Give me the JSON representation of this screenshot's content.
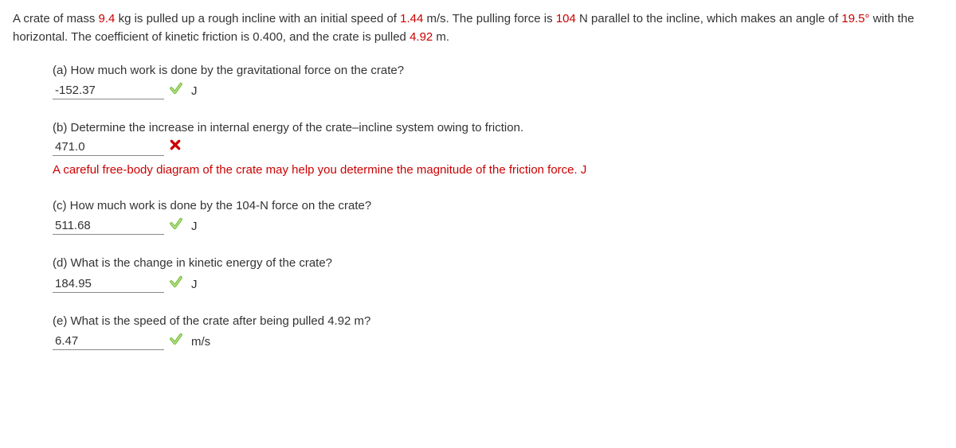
{
  "problem": {
    "parts": [
      "A crate of mass ",
      {
        "red": "9.4"
      },
      " kg is pulled up a rough incline with an initial speed of ",
      {
        "red": "1.44"
      },
      " m/s. The pulling force is ",
      {
        "red": "104"
      },
      " N parallel to the incline, which makes an angle of ",
      {
        "red": "19.5°"
      },
      " with the horizontal. The coefficient of kinetic friction is 0.400, and the crate is pulled ",
      {
        "red": "4.92"
      },
      " m."
    ]
  },
  "questions": {
    "a": {
      "label": "(a) How much work is done by the gravitational force on the crate?",
      "value": "-152.37",
      "status": "correct",
      "unit": "J"
    },
    "b": {
      "label": "(b) Determine the increase in internal energy of the crate–incline system owing to friction.",
      "value": "471.0",
      "status": "incorrect",
      "hint": "A careful free-body diagram of the crate may help you determine the magnitude of the friction force. J"
    },
    "c": {
      "label": "(c) How much work is done by the 104-N force on the crate?",
      "value": "511.68",
      "status": "correct",
      "unit": "J"
    },
    "d": {
      "label": "(d) What is the change in kinetic energy of the crate?",
      "value": "184.95",
      "status": "correct",
      "unit": "J"
    },
    "e": {
      "label": "(e) What is the speed of the crate after being pulled 4.92 m?",
      "value": "6.47",
      "status": "correct",
      "unit": "m/s"
    }
  },
  "icons": {
    "correct_color": "#7ac142",
    "incorrect_color": "#c00"
  }
}
